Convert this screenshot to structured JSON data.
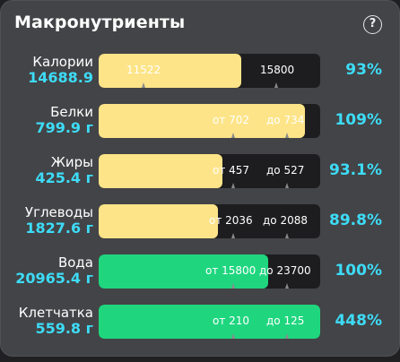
{
  "title": "Макронутриенты",
  "help_glyph": "?",
  "rows": [
    {
      "name": "Калории",
      "value": "14688.9",
      "left_text": "11522",
      "right_text": "15800",
      "percent": "93%",
      "fill": 0.645,
      "color": "yellow"
    },
    {
      "name": "Белки",
      "value": "799.9 г",
      "left_text": "от 702",
      "right_text": "до 734",
      "percent": "109%",
      "fill": 0.93,
      "color": "yellow"
    },
    {
      "name": "Жиры",
      "value": "425.4 г",
      "left_text": "от 457",
      "right_text": "до 527",
      "percent": "93.1%",
      "fill": 0.56,
      "color": "yellow"
    },
    {
      "name": "Углеводы",
      "value": "1827.6 г",
      "left_text": "от 2036",
      "right_text": "до 2088",
      "percent": "89.8%",
      "fill": 0.54,
      "color": "yellow"
    },
    {
      "name": "Вода",
      "value": "20965.4 г",
      "left_text": "от 15800",
      "right_text": "до 23700",
      "percent": "100%",
      "fill": 0.765,
      "color": "green"
    },
    {
      "name": "Клетчатка",
      "value": "559.8 г",
      "left_text": "от 210",
      "right_text": "до 125",
      "percent": "448%",
      "fill": 1.0,
      "color": "green"
    }
  ]
}
